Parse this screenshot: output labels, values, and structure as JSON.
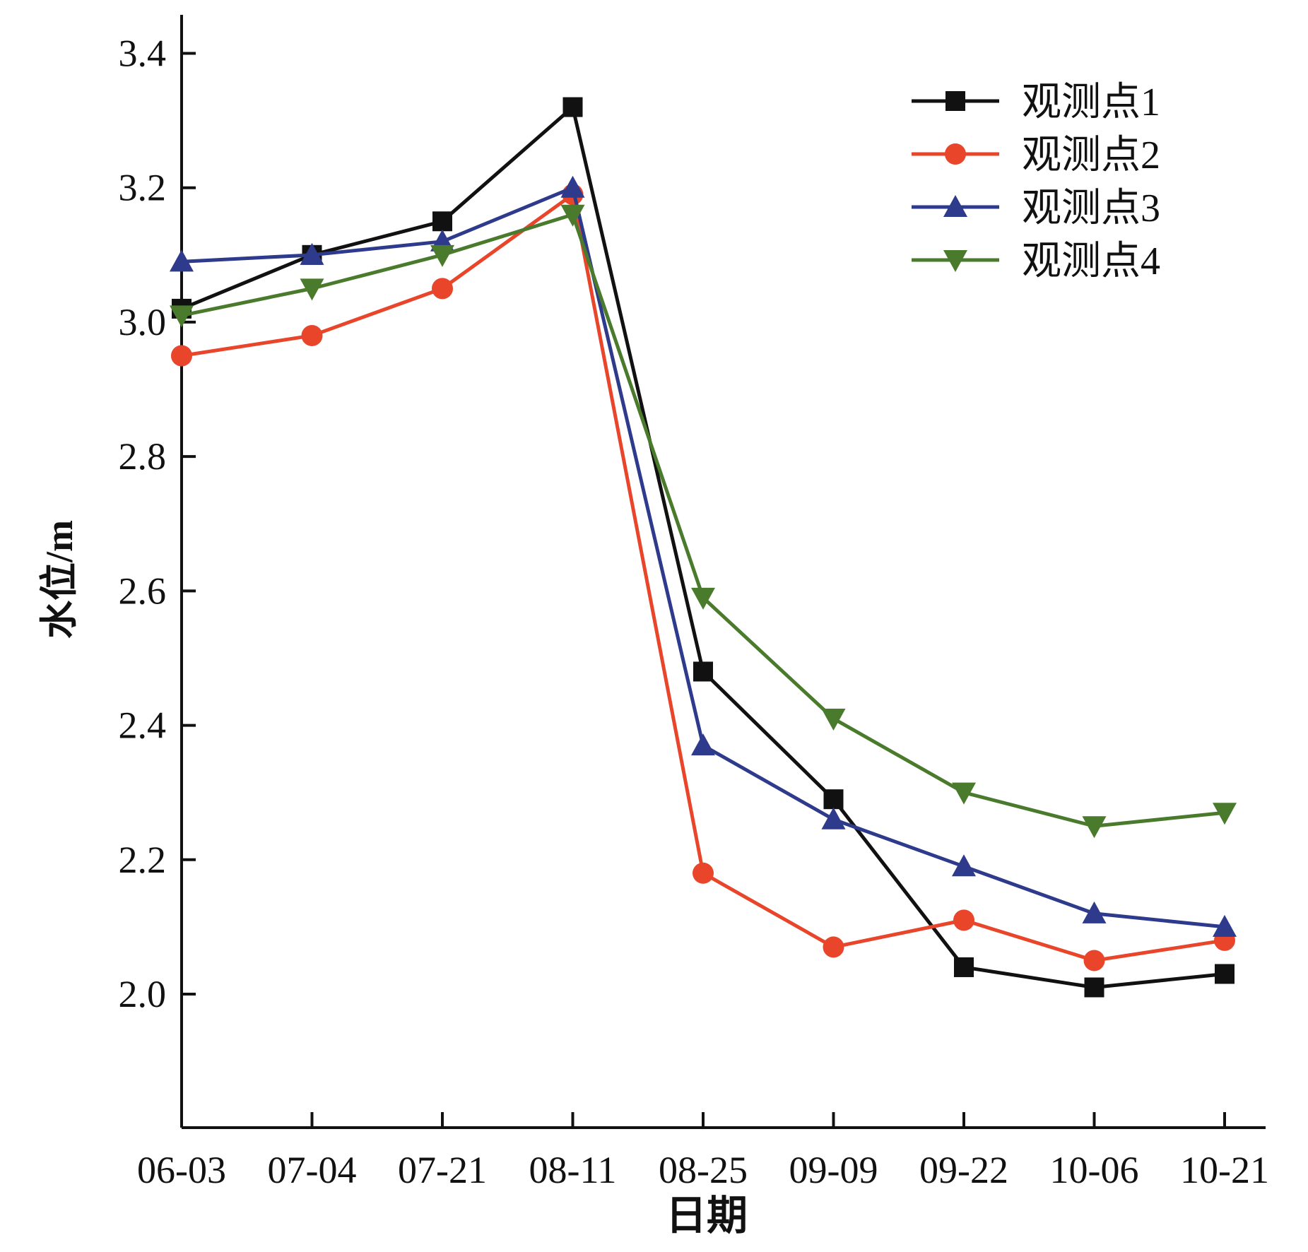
{
  "chart_data": {
    "type": "line",
    "title": "",
    "xlabel": "日期",
    "ylabel": "水位/m",
    "categories": [
      "06-03",
      "07-04",
      "07-21",
      "08-11",
      "08-25",
      "09-09",
      "09-22",
      "10-06",
      "10-21"
    ],
    "ylim": [
      1.8,
      3.45
    ],
    "yticks": [
      "2.0",
      "2.2",
      "2.4",
      "2.6",
      "2.8",
      "3.0",
      "3.2",
      "3.4"
    ],
    "grid": false,
    "legend_position": "top-right",
    "series": [
      {
        "name": "观测点1",
        "color": "#111111",
        "marker": "square",
        "values": [
          3.02,
          3.1,
          3.15,
          3.32,
          2.48,
          2.29,
          2.04,
          2.01,
          2.03
        ]
      },
      {
        "name": "观测点2",
        "color": "#e8452a",
        "marker": "circle",
        "values": [
          2.95,
          2.98,
          3.05,
          3.19,
          2.18,
          2.07,
          2.11,
          2.05,
          2.08
        ]
      },
      {
        "name": "观测点3",
        "color": "#2e3a8c",
        "marker": "triangle-up",
        "values": [
          3.09,
          3.1,
          3.12,
          3.2,
          2.37,
          2.26,
          2.19,
          2.12,
          2.1
        ]
      },
      {
        "name": "观测点4",
        "color": "#4a7a2c",
        "marker": "triangle-down",
        "values": [
          3.01,
          3.05,
          3.1,
          3.16,
          2.59,
          2.41,
          2.3,
          2.25,
          2.27
        ]
      }
    ]
  }
}
